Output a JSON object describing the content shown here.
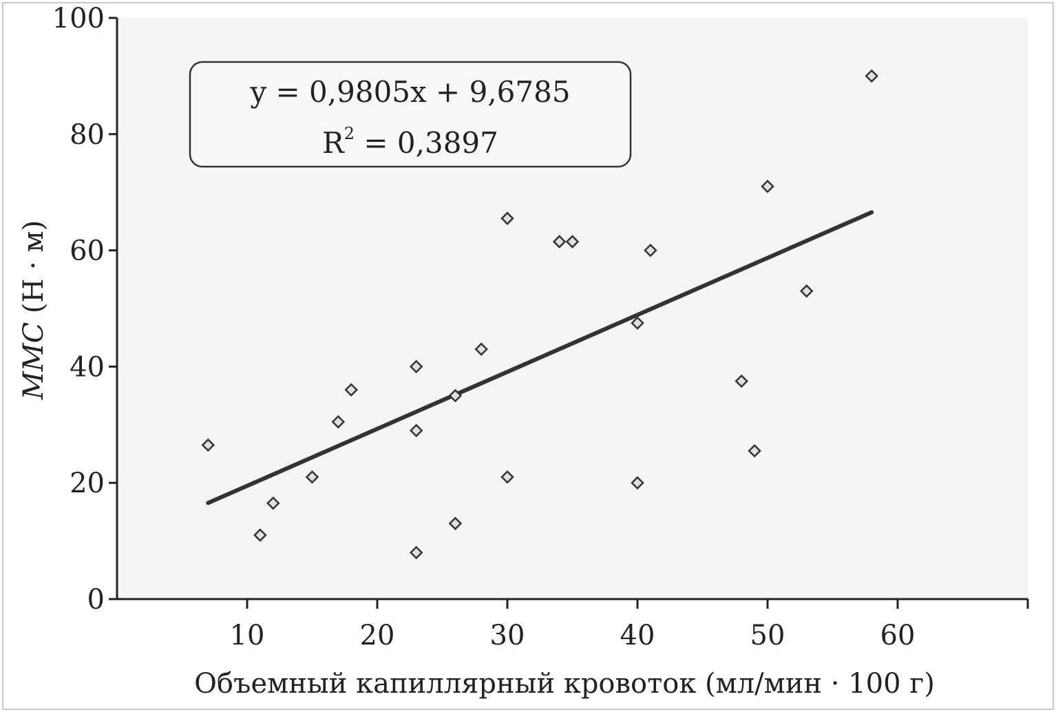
{
  "chart_data": {
    "type": "scatter",
    "title": "",
    "xlabel": "Объемный капиллярный кровоток (мл/мин · 100 г)",
    "ylabel_italic": "ММС",
    "ylabel_unit": " (Н · м)",
    "xlim": [
      0,
      70
    ],
    "ylim": [
      0,
      100
    ],
    "xticks": [
      10,
      20,
      30,
      40,
      50,
      60
    ],
    "yticks": [
      0,
      20,
      40,
      60,
      80,
      100
    ],
    "grid": false,
    "marker": "diamond",
    "points": [
      {
        "x": 7,
        "y": 26.5
      },
      {
        "x": 11,
        "y": 11
      },
      {
        "x": 12,
        "y": 16.5
      },
      {
        "x": 15,
        "y": 21
      },
      {
        "x": 17,
        "y": 30.5
      },
      {
        "x": 18,
        "y": 36
      },
      {
        "x": 23,
        "y": 8
      },
      {
        "x": 23,
        "y": 29
      },
      {
        "x": 23,
        "y": 40
      },
      {
        "x": 26,
        "y": 13
      },
      {
        "x": 26,
        "y": 35
      },
      {
        "x": 28,
        "y": 43
      },
      {
        "x": 30,
        "y": 21
      },
      {
        "x": 30,
        "y": 65.5
      },
      {
        "x": 34,
        "y": 61.5
      },
      {
        "x": 35,
        "y": 61.5
      },
      {
        "x": 40,
        "y": 20
      },
      {
        "x": 40,
        "y": 47.5
      },
      {
        "x": 41,
        "y": 60
      },
      {
        "x": 48,
        "y": 37.5
      },
      {
        "x": 49,
        "y": 25.5
      },
      {
        "x": 50,
        "y": 71
      },
      {
        "x": 53,
        "y": 53
      },
      {
        "x": 58,
        "y": 90
      }
    ],
    "trendline": {
      "slope": 0.9805,
      "intercept": 9.6785,
      "x_range": [
        7,
        58
      ]
    },
    "annotation": {
      "equation": "y = 0,9805x + 9,6785",
      "r2_label": "R",
      "r2_sup": "2",
      "r2_value": " = 0,3897"
    }
  },
  "colors": {
    "plot_background": "#f5f5f5",
    "ink": "#222222",
    "trendline": "#333333",
    "marker_stroke": "#333333",
    "marker_fill": "#e0e0e0"
  }
}
